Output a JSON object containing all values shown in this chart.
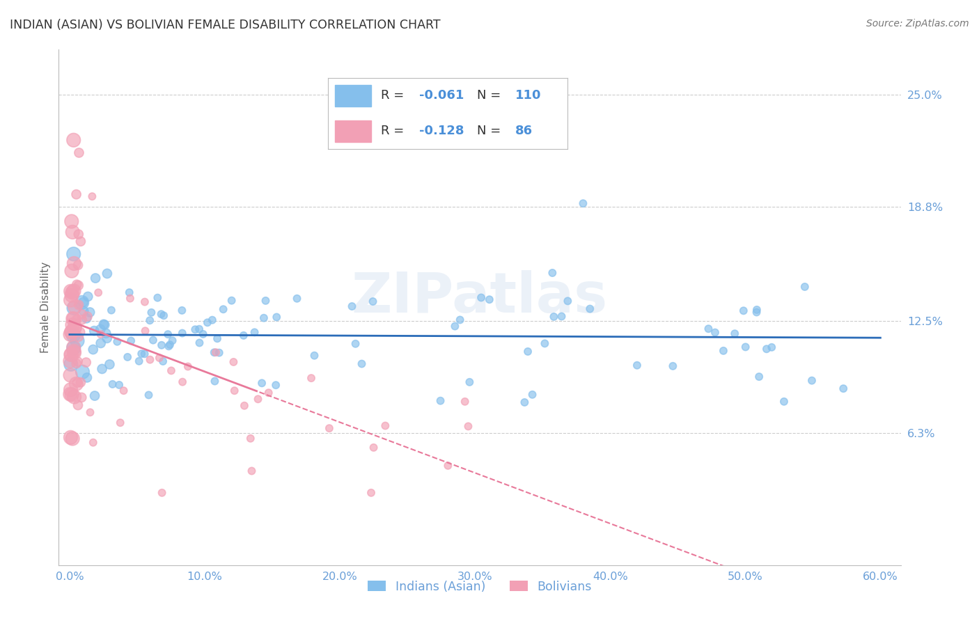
{
  "title": "INDIAN (ASIAN) VS BOLIVIAN FEMALE DISABILITY CORRELATION CHART",
  "source": "Source: ZipAtlas.com",
  "ylabel": "Female Disability",
  "watermark": "ZIPatlas",
  "legend_indian": "Indians (Asian)",
  "legend_bolivian": "Bolivians",
  "R_indian": -0.061,
  "N_indian": 110,
  "R_bolivian": -0.128,
  "N_bolivian": 86,
  "color_indian": "#85bfec",
  "color_bolivian": "#f2a0b5",
  "trendline_indian": "#2b6cb8",
  "trendline_bolivian": "#e8799a",
  "background_color": "#ffffff",
  "grid_color": "#cccccc",
  "title_color": "#333333",
  "tick_color": "#6a9fd8",
  "axis_label_color": "#666666",
  "legend_text_color": "#333333",
  "legend_value_color": "#4a8fd8",
  "ytick_labels": [
    "6.3%",
    "12.5%",
    "18.8%",
    "25.0%"
  ],
  "ytick_vals": [
    0.063,
    0.125,
    0.188,
    0.25
  ],
  "xtick_vals": [
    0.0,
    0.1,
    0.2,
    0.3,
    0.4,
    0.5,
    0.6
  ],
  "xtick_labels": [
    "0.0%",
    "10.0%",
    "20.0%",
    "30.0%",
    "40.0%",
    "50.0%",
    "60.0%"
  ]
}
